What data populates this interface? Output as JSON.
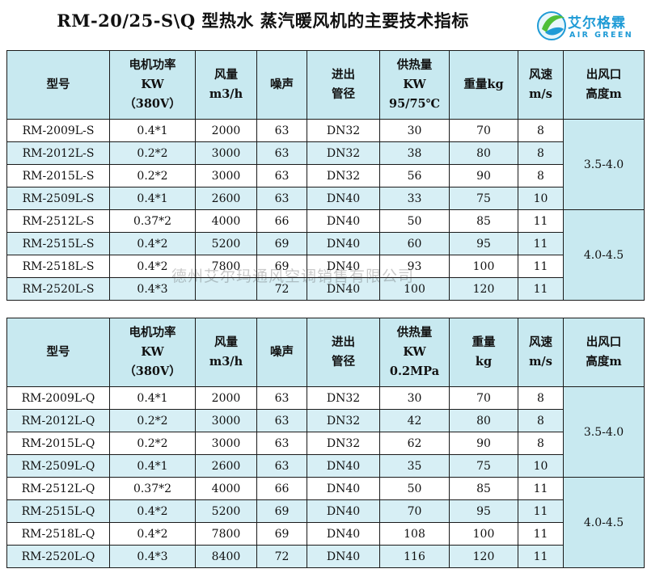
{
  "title": "RM-20/25-S\\Q 型热水 蒸汽暖风机的主要技术指标",
  "logo": {
    "cn": "艾尔格霖",
    "en": "AIR GREEN",
    "color": "#1f9bd6"
  },
  "watermark": "德州艾尔玛通风空调销售有限公司",
  "colors": {
    "header_bg": "#c8e9f0",
    "alt_row_bg": "#d7eff5",
    "border": "#1a1a1a"
  },
  "table_s": {
    "headers": [
      [
        "型号"
      ],
      [
        "电机功率",
        "KW",
        "（380V）"
      ],
      [
        "风量",
        "m3/h"
      ],
      [
        "噪声"
      ],
      [
        "进出",
        "管径"
      ],
      [
        "供热量",
        "KW",
        "95/75℃"
      ],
      [
        "重量kg"
      ],
      [
        "风速",
        "m/s"
      ],
      [
        "出风口",
        "高度m"
      ]
    ],
    "rows": [
      [
        "RM-2009L-S",
        "0.4*1",
        "2000",
        "63",
        "DN32",
        "30",
        "70",
        "8"
      ],
      [
        "RM-2012L-S",
        "0.2*2",
        "3000",
        "63",
        "DN32",
        "38",
        "80",
        "8"
      ],
      [
        "RM-2015L-S",
        "0.2*2",
        "3000",
        "63",
        "DN32",
        "56",
        "90",
        "8"
      ],
      [
        "RM-2509L-S",
        "0.4*1",
        "2600",
        "63",
        "DN40",
        "33",
        "75",
        "10"
      ],
      [
        "RM-2512L-S",
        "0.37*2",
        "4000",
        "66",
        "DN40",
        "50",
        "85",
        "11"
      ],
      [
        "RM-2515L-S",
        "0.4*2",
        "5200",
        "69",
        "DN40",
        "60",
        "95",
        "11"
      ],
      [
        "RM-2518L-S",
        "0.4*2",
        "7800",
        "69",
        "DN40",
        "93",
        "100",
        "11"
      ],
      [
        "RM-2520L-S",
        "0.4*3",
        "",
        "72",
        "DN40",
        "100",
        "120",
        "11"
      ]
    ],
    "height_groups": [
      "3.5-4.0",
      "4.0-4.5"
    ]
  },
  "table_q": {
    "headers": [
      [
        "型号"
      ],
      [
        "电机功率",
        "KW",
        "（380V）"
      ],
      [
        "风量",
        "m3/h"
      ],
      [
        "噪声"
      ],
      [
        "进出",
        "管径"
      ],
      [
        "供热量",
        "KW",
        "0.2MPa"
      ],
      [
        "重量",
        "kg"
      ],
      [
        "风速",
        "m/s"
      ],
      [
        "出风口",
        "高度m"
      ]
    ],
    "rows": [
      [
        "RM-2009L-Q",
        "0.4*1",
        "2000",
        "63",
        "DN32",
        "30",
        "70",
        "8"
      ],
      [
        "RM-2012L-Q",
        "0.2*2",
        "3000",
        "63",
        "DN32",
        "42",
        "80",
        "8"
      ],
      [
        "RM-2015L-Q",
        "0.2*2",
        "3000",
        "63",
        "DN32",
        "62",
        "90",
        "8"
      ],
      [
        "RM-2509L-Q",
        "0.4*1",
        "2600",
        "63",
        "DN40",
        "35",
        "75",
        "10"
      ],
      [
        "RM-2512L-Q",
        "0.37*2",
        "4000",
        "66",
        "DN40",
        "50",
        "85",
        "11"
      ],
      [
        "RM-2515L-Q",
        "0.4*2",
        "5200",
        "69",
        "DN40",
        "70",
        "95",
        "11"
      ],
      [
        "RM-2518L-Q",
        "0.4*2",
        "7800",
        "69",
        "DN40",
        "108",
        "100",
        "11"
      ],
      [
        "RM-2520L-Q",
        "0.4*3",
        "8400",
        "72",
        "DN40",
        "116",
        "120",
        "11"
      ]
    ],
    "height_groups": [
      "3.5-4.0",
      "4.0-4.5"
    ]
  }
}
